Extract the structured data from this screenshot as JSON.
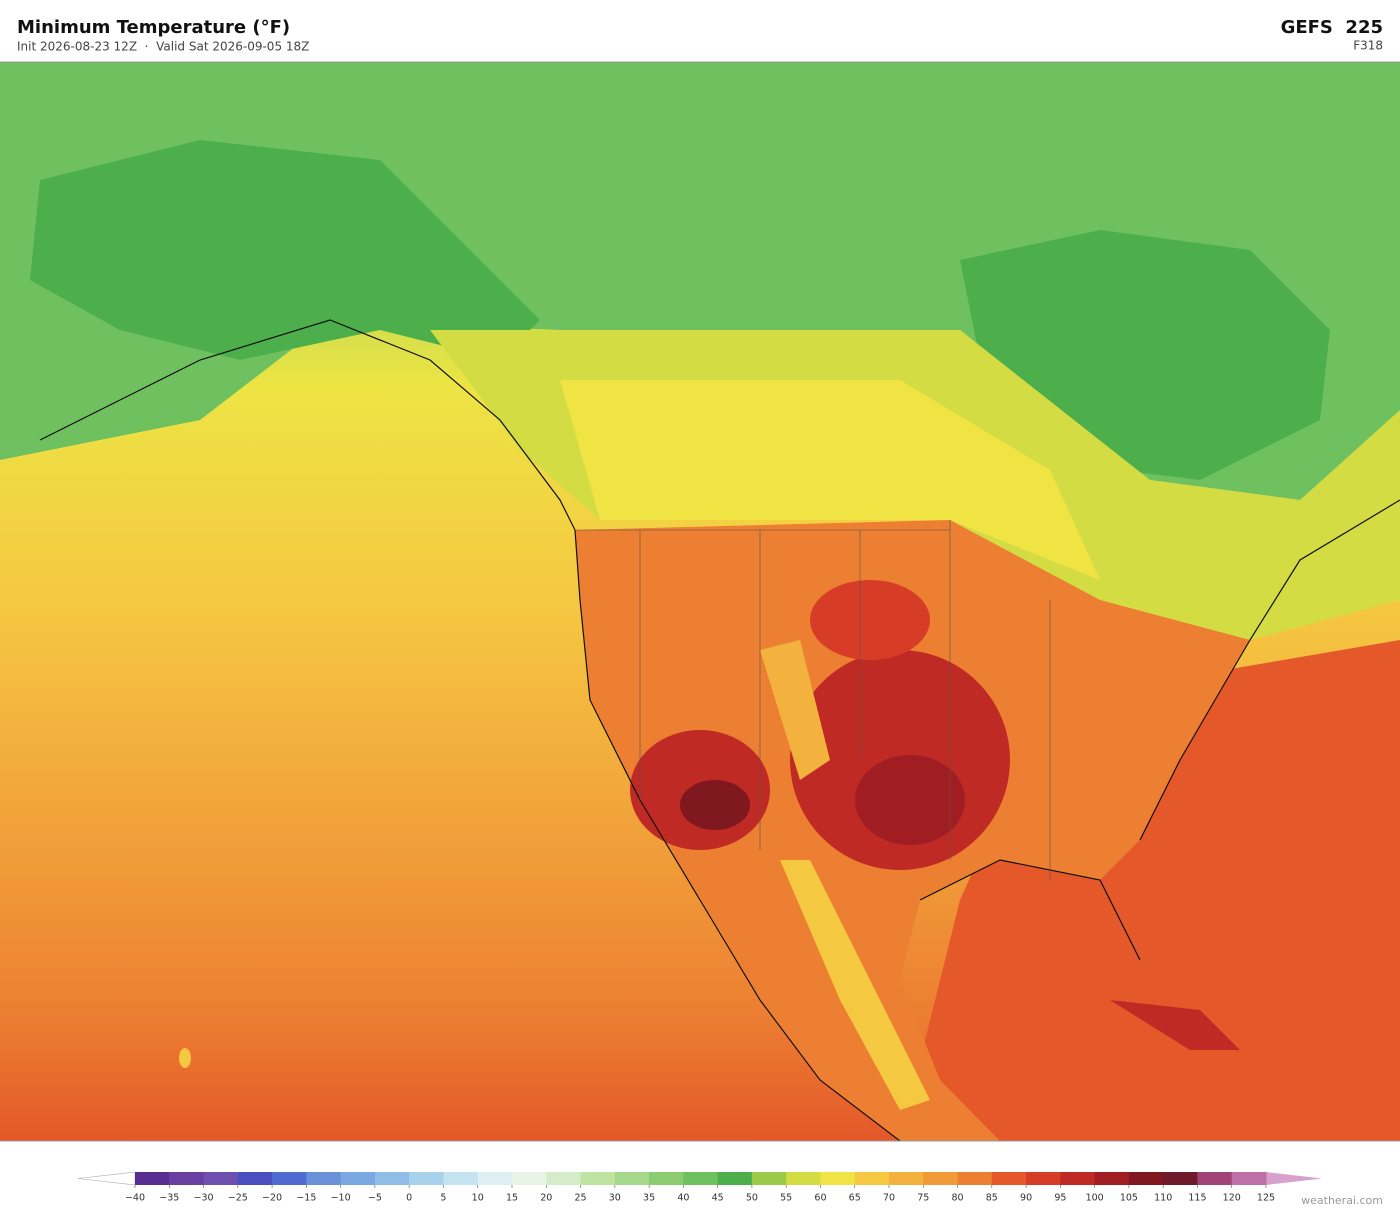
{
  "header": {
    "title": "Minimum Temperature  (°F)",
    "subtitle": "Init 2026-08-23 12Z  ·  Valid Sat 2026-09-05 18Z",
    "model": "GEFS  225",
    "forecast_hour": "F318"
  },
  "colorbar": {
    "ticks": [
      {
        "value": -40,
        "label": "−40"
      },
      {
        "value": -35,
        "label": "−35"
      },
      {
        "value": -30,
        "label": "−30"
      },
      {
        "value": -25,
        "label": "−25"
      },
      {
        "value": -20,
        "label": "−20"
      },
      {
        "value": -15,
        "label": "−15"
      },
      {
        "value": -10,
        "label": "−10"
      },
      {
        "value": -5,
        "label": "−5"
      },
      0,
      5,
      10,
      15,
      20,
      25,
      30,
      35,
      40,
      45,
      50,
      55,
      60,
      65,
      70,
      75,
      80,
      85,
      90,
      95,
      100,
      105,
      110,
      115,
      120,
      125
    ],
    "colors": [
      "#5a2d91",
      "#6a3fa0",
      "#6e4fb0",
      "#4a4fc0",
      "#4f6bd0",
      "#6a90d8",
      "#7aa8e0",
      "#8fbde6",
      "#a8d2ec",
      "#c5e3f0",
      "#dff0f2",
      "#e8f5e6",
      "#d5ecc8",
      "#bfe3a0",
      "#a5d88a",
      "#8ccc70",
      "#6fc05e",
      "#4caf4c",
      "#9bca4a",
      "#d4dc44",
      "#f0e444",
      "#f5c842",
      "#f3b23e",
      "#f09a38",
      "#ec7f32",
      "#e4582a",
      "#d63c26",
      "#c02a24",
      "#a01e22",
      "#801820",
      "#6e1a2a",
      "#a04478",
      "#c070a8"
    ],
    "under_color": "#ffffff",
    "over_color": "#d8a0cc"
  },
  "watermark": "weatherai.com"
}
